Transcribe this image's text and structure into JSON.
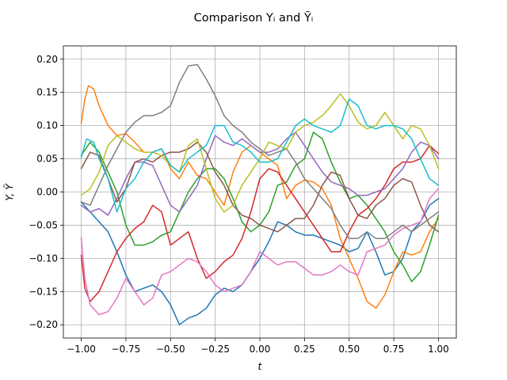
{
  "chart_data": {
    "type": "line",
    "title": "Comparison Yᵢ and Ỹᵢ",
    "xlabel": "t",
    "ylabel": "Y, Ỹ",
    "xlim": [
      -1.1,
      1.1
    ],
    "ylim": [
      -0.22,
      0.22
    ],
    "xticks": [
      -1.0,
      -0.75,
      -0.5,
      -0.25,
      0.0,
      0.25,
      0.5,
      0.75,
      1.0
    ],
    "xtick_labels": [
      "−1.00",
      "−0.75",
      "−0.50",
      "−0.25",
      "0.00",
      "0.25",
      "0.50",
      "0.75",
      "1.00"
    ],
    "yticks": [
      -0.2,
      -0.15,
      -0.1,
      -0.05,
      0.0,
      0.05,
      0.1,
      0.15,
      0.2
    ],
    "ytick_labels": [
      "−0.20",
      "−0.15",
      "−0.10",
      "−0.05",
      "0.00",
      "0.05",
      "0.10",
      "0.15",
      "0.20"
    ],
    "grid": true,
    "legend": false,
    "series": [
      {
        "color": "#1f77b4",
        "x": [
          -1.0,
          -0.95,
          -0.9,
          -0.85,
          -0.8,
          -0.75,
          -0.7,
          -0.65,
          -0.6,
          -0.55,
          -0.5,
          -0.45,
          -0.4,
          -0.35,
          -0.3,
          -0.25,
          -0.2,
          -0.15,
          -0.1,
          -0.05,
          0.0,
          0.05,
          0.1,
          0.15,
          0.2,
          0.25,
          0.3,
          0.35,
          0.4,
          0.45,
          0.5,
          0.55,
          0.6,
          0.65,
          0.7,
          0.75,
          0.8,
          0.85,
          0.9,
          0.95,
          1.0
        ],
        "y": [
          -0.015,
          -0.03,
          -0.045,
          -0.06,
          -0.09,
          -0.125,
          -0.15,
          -0.145,
          -0.14,
          -0.15,
          -0.17,
          -0.2,
          -0.19,
          -0.185,
          -0.175,
          -0.155,
          -0.145,
          -0.15,
          -0.14,
          -0.12,
          -0.1,
          -0.075,
          -0.045,
          -0.05,
          -0.06,
          -0.065,
          -0.065,
          -0.07,
          -0.075,
          -0.08,
          -0.09,
          -0.085,
          -0.06,
          -0.09,
          -0.125,
          -0.12,
          -0.1,
          -0.06,
          -0.045,
          -0.02,
          -0.01
        ]
      },
      {
        "color": "#ff7f0e",
        "x": [
          -1.0,
          -0.98,
          -0.96,
          -0.93,
          -0.9,
          -0.85,
          -0.8,
          -0.75,
          -0.7,
          -0.65,
          -0.6,
          -0.55,
          -0.5,
          -0.45,
          -0.4,
          -0.35,
          -0.3,
          -0.25,
          -0.2,
          -0.15,
          -0.1,
          -0.05,
          0.0,
          0.05,
          0.1,
          0.15,
          0.2,
          0.25,
          0.3,
          0.35,
          0.4,
          0.45,
          0.5,
          0.55,
          0.6,
          0.65,
          0.7,
          0.75,
          0.8,
          0.85,
          0.9,
          0.95,
          1.0
        ],
        "y": [
          0.103,
          0.14,
          0.16,
          0.155,
          0.13,
          0.1,
          0.085,
          0.088,
          0.075,
          0.06,
          0.06,
          0.065,
          0.035,
          0.02,
          0.045,
          0.025,
          0.02,
          0.0,
          -0.02,
          0.03,
          0.06,
          0.07,
          0.06,
          0.05,
          0.04,
          -0.01,
          0.01,
          0.018,
          0.015,
          0.005,
          -0.02,
          -0.07,
          -0.1,
          -0.13,
          -0.165,
          -0.175,
          -0.155,
          -0.12,
          -0.09,
          -0.095,
          -0.09,
          -0.06,
          -0.04
        ]
      },
      {
        "color": "#2ca02c",
        "x": [
          -1.0,
          -0.95,
          -0.9,
          -0.85,
          -0.8,
          -0.75,
          -0.7,
          -0.65,
          -0.6,
          -0.55,
          -0.5,
          -0.45,
          -0.4,
          -0.35,
          -0.3,
          -0.25,
          -0.2,
          -0.15,
          -0.1,
          -0.05,
          0.0,
          0.05,
          0.1,
          0.15,
          0.2,
          0.25,
          0.3,
          0.35,
          0.4,
          0.45,
          0.5,
          0.55,
          0.6,
          0.65,
          0.7,
          0.75,
          0.8,
          0.85,
          0.9,
          0.95,
          1.0
        ],
        "y": [
          0.055,
          0.075,
          0.06,
          0.03,
          0.0,
          -0.05,
          -0.08,
          -0.08,
          -0.075,
          -0.065,
          -0.06,
          -0.03,
          0.0,
          0.02,
          0.035,
          0.035,
          0.02,
          -0.01,
          -0.045,
          -0.06,
          -0.05,
          -0.03,
          0.01,
          0.015,
          0.04,
          0.05,
          0.09,
          0.08,
          0.045,
          0.015,
          -0.01,
          -0.005,
          -0.02,
          -0.04,
          -0.06,
          -0.09,
          -0.11,
          -0.135,
          -0.12,
          -0.08,
          -0.035
        ]
      },
      {
        "color": "#d62728",
        "x": [
          -1.0,
          -0.98,
          -0.95,
          -0.9,
          -0.85,
          -0.8,
          -0.75,
          -0.7,
          -0.65,
          -0.6,
          -0.55,
          -0.5,
          -0.45,
          -0.4,
          -0.35,
          -0.3,
          -0.25,
          -0.2,
          -0.15,
          -0.1,
          -0.05,
          0.0,
          0.05,
          0.1,
          0.15,
          0.2,
          0.25,
          0.3,
          0.35,
          0.4,
          0.45,
          0.5,
          0.55,
          0.6,
          0.65,
          0.7,
          0.75,
          0.8,
          0.85,
          0.9,
          0.95,
          1.0
        ],
        "y": [
          -0.095,
          -0.145,
          -0.165,
          -0.15,
          -0.12,
          -0.09,
          -0.07,
          -0.055,
          -0.045,
          -0.02,
          -0.03,
          -0.08,
          -0.07,
          -0.06,
          -0.1,
          -0.13,
          -0.12,
          -0.105,
          -0.095,
          -0.07,
          -0.03,
          0.02,
          0.035,
          0.03,
          0.01,
          -0.01,
          -0.03,
          -0.05,
          -0.07,
          -0.09,
          -0.09,
          -0.06,
          -0.035,
          -0.025,
          -0.01,
          0.01,
          0.035,
          0.045,
          0.045,
          0.05,
          0.07,
          0.058
        ]
      },
      {
        "color": "#9467bd",
        "x": [
          -1.0,
          -0.95,
          -0.9,
          -0.85,
          -0.8,
          -0.75,
          -0.7,
          -0.65,
          -0.6,
          -0.55,
          -0.5,
          -0.45,
          -0.4,
          -0.35,
          -0.3,
          -0.25,
          -0.2,
          -0.15,
          -0.1,
          -0.05,
          0.0,
          0.05,
          0.1,
          0.15,
          0.2,
          0.25,
          0.3,
          0.35,
          0.4,
          0.45,
          0.5,
          0.55,
          0.6,
          0.65,
          0.7,
          0.75,
          0.8,
          0.85,
          0.9,
          0.95,
          1.0
        ],
        "y": [
          -0.02,
          -0.03,
          -0.025,
          -0.035,
          -0.01,
          0.02,
          0.045,
          0.045,
          0.04,
          0.01,
          -0.02,
          -0.03,
          -0.01,
          0.01,
          0.05,
          0.085,
          0.075,
          0.07,
          0.08,
          0.07,
          0.06,
          0.06,
          0.065,
          0.08,
          0.09,
          0.07,
          0.05,
          0.03,
          0.015,
          0.01,
          0.005,
          -0.005,
          -0.005,
          0.0,
          0.005,
          0.02,
          0.035,
          0.06,
          0.075,
          0.07,
          0.05
        ]
      },
      {
        "color": "#8c564b",
        "x": [
          -1.0,
          -0.95,
          -0.9,
          -0.85,
          -0.8,
          -0.75,
          -0.7,
          -0.65,
          -0.6,
          -0.55,
          -0.5,
          -0.45,
          -0.4,
          -0.35,
          -0.3,
          -0.25,
          -0.2,
          -0.15,
          -0.1,
          -0.05,
          0.0,
          0.05,
          0.1,
          0.15,
          0.2,
          0.25,
          0.3,
          0.35,
          0.4,
          0.45,
          0.5,
          0.55,
          0.6,
          0.65,
          0.7,
          0.75,
          0.8,
          0.85,
          0.9,
          0.95,
          1.0
        ],
        "y": [
          0.035,
          0.06,
          0.055,
          0.02,
          -0.015,
          0.005,
          0.045,
          0.05,
          0.045,
          0.055,
          0.06,
          0.06,
          0.065,
          0.075,
          0.06,
          0.03,
          0.01,
          -0.02,
          -0.035,
          -0.04,
          -0.05,
          -0.055,
          -0.06,
          -0.05,
          -0.04,
          -0.04,
          -0.02,
          0.01,
          0.03,
          0.025,
          -0.01,
          -0.035,
          -0.04,
          -0.02,
          -0.01,
          0.01,
          0.02,
          0.015,
          -0.02,
          -0.05,
          -0.06
        ]
      },
      {
        "color": "#e377c2",
        "x": [
          -1.0,
          -0.98,
          -0.95,
          -0.9,
          -0.85,
          -0.8,
          -0.75,
          -0.7,
          -0.65,
          -0.6,
          -0.55,
          -0.5,
          -0.45,
          -0.4,
          -0.35,
          -0.3,
          -0.25,
          -0.2,
          -0.15,
          -0.1,
          -0.05,
          0.0,
          0.05,
          0.1,
          0.15,
          0.2,
          0.25,
          0.3,
          0.35,
          0.4,
          0.45,
          0.5,
          0.55,
          0.6,
          0.65,
          0.7,
          0.75,
          0.8,
          0.85,
          0.9,
          0.95,
          1.0
        ],
        "y": [
          -0.068,
          -0.13,
          -0.17,
          -0.185,
          -0.18,
          -0.16,
          -0.13,
          -0.15,
          -0.17,
          -0.16,
          -0.125,
          -0.12,
          -0.11,
          -0.1,
          -0.105,
          -0.12,
          -0.14,
          -0.15,
          -0.145,
          -0.14,
          -0.12,
          -0.09,
          -0.1,
          -0.11,
          -0.105,
          -0.105,
          -0.115,
          -0.125,
          -0.125,
          -0.12,
          -0.11,
          -0.12,
          -0.125,
          -0.09,
          -0.085,
          -0.08,
          -0.065,
          -0.055,
          -0.05,
          -0.045,
          -0.01,
          0.005
        ]
      },
      {
        "color": "#7f7f7f",
        "x": [
          -1.0,
          -0.95,
          -0.9,
          -0.85,
          -0.8,
          -0.75,
          -0.7,
          -0.65,
          -0.6,
          -0.55,
          -0.5,
          -0.45,
          -0.4,
          -0.35,
          -0.3,
          -0.25,
          -0.2,
          -0.15,
          -0.1,
          -0.05,
          0.0,
          0.05,
          0.1,
          0.15,
          0.2,
          0.25,
          0.3,
          0.35,
          0.4,
          0.45,
          0.5,
          0.55,
          0.6,
          0.65,
          0.7,
          0.75,
          0.8,
          0.85,
          0.9,
          0.95,
          1.0
        ],
        "y": [
          -0.015,
          -0.02,
          0.01,
          0.04,
          0.065,
          0.09,
          0.105,
          0.115,
          0.115,
          0.12,
          0.13,
          0.165,
          0.19,
          0.192,
          0.17,
          0.145,
          0.115,
          0.1,
          0.09,
          0.075,
          0.065,
          0.055,
          0.06,
          0.065,
          0.045,
          0.02,
          0.005,
          -0.01,
          -0.025,
          -0.05,
          -0.07,
          -0.07,
          -0.06,
          -0.07,
          -0.07,
          -0.06,
          -0.05,
          -0.06,
          -0.05,
          -0.04,
          -0.03
        ]
      },
      {
        "color": "#bcbd22",
        "x": [
          -1.0,
          -0.95,
          -0.9,
          -0.85,
          -0.8,
          -0.75,
          -0.7,
          -0.65,
          -0.6,
          -0.55,
          -0.5,
          -0.45,
          -0.4,
          -0.35,
          -0.3,
          -0.25,
          -0.2,
          -0.15,
          -0.1,
          -0.05,
          0.0,
          0.05,
          0.1,
          0.15,
          0.2,
          0.25,
          0.3,
          0.35,
          0.4,
          0.45,
          0.5,
          0.55,
          0.6,
          0.65,
          0.7,
          0.75,
          0.8,
          0.85,
          0.9,
          0.95,
          1.0
        ],
        "y": [
          -0.005,
          0.005,
          0.03,
          0.07,
          0.085,
          0.075,
          0.065,
          0.06,
          0.06,
          0.055,
          0.04,
          0.03,
          0.07,
          0.08,
          0.035,
          -0.01,
          -0.03,
          -0.02,
          0.01,
          0.03,
          0.05,
          0.075,
          0.07,
          0.065,
          0.09,
          0.1,
          0.105,
          0.115,
          0.13,
          0.148,
          0.13,
          0.105,
          0.095,
          0.1,
          0.12,
          0.1,
          0.08,
          0.1,
          0.095,
          0.07,
          0.035
        ]
      },
      {
        "color": "#17becf",
        "x": [
          -1.0,
          -0.97,
          -0.93,
          -0.9,
          -0.85,
          -0.8,
          -0.75,
          -0.7,
          -0.65,
          -0.6,
          -0.55,
          -0.5,
          -0.45,
          -0.4,
          -0.35,
          -0.3,
          -0.25,
          -0.2,
          -0.15,
          -0.1,
          -0.05,
          0.0,
          0.05,
          0.1,
          0.15,
          0.2,
          0.25,
          0.3,
          0.35,
          0.4,
          0.45,
          0.5,
          0.55,
          0.6,
          0.65,
          0.7,
          0.75,
          0.8,
          0.85,
          0.9,
          0.95,
          1.0
        ],
        "y": [
          0.052,
          0.08,
          0.075,
          0.05,
          0.02,
          -0.03,
          0.005,
          0.02,
          0.045,
          0.06,
          0.065,
          0.04,
          0.03,
          0.05,
          0.06,
          0.07,
          0.1,
          0.1,
          0.075,
          0.07,
          0.06,
          0.045,
          0.045,
          0.05,
          0.075,
          0.1,
          0.11,
          0.1,
          0.095,
          0.09,
          0.1,
          0.14,
          0.13,
          0.1,
          0.095,
          0.1,
          0.1,
          0.095,
          0.08,
          0.05,
          0.02,
          0.01
        ]
      }
    ]
  }
}
